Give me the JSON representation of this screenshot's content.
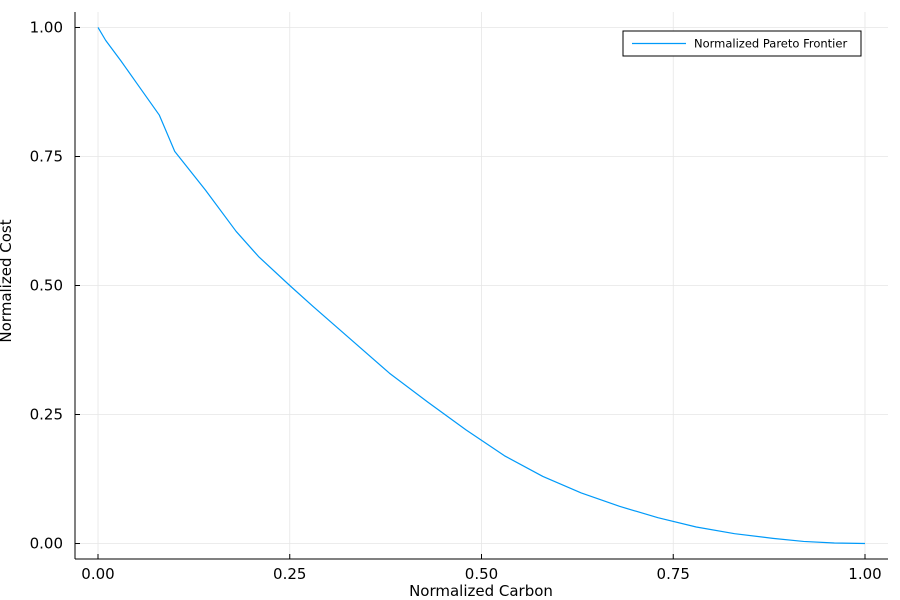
{
  "chart_data": {
    "type": "line",
    "xlabel": "Normalized Carbon",
    "ylabel": "Normalized Cost",
    "xlim": [
      -0.03,
      1.03
    ],
    "ylim": [
      -0.03,
      1.03
    ],
    "xticks": [
      0,
      0.25,
      0.5,
      0.75,
      1
    ],
    "yticks": [
      0,
      0.25,
      0.5,
      0.75,
      1
    ],
    "xtick_labels": [
      "0.00",
      "0.25",
      "0.50",
      "0.75",
      "1.00"
    ],
    "ytick_labels": [
      "0.00",
      "0.25",
      "0.50",
      "0.75",
      "1.00"
    ],
    "grid": true,
    "legend_position": "top-right",
    "series": [
      {
        "name": "Normalized Pareto Frontier",
        "color": "#009af9",
        "x": [
          0.0,
          0.01,
          0.03,
          0.05,
          0.08,
          0.1,
          0.14,
          0.18,
          0.21,
          0.25,
          0.28,
          0.33,
          0.38,
          0.43,
          0.48,
          0.53,
          0.58,
          0.63,
          0.68,
          0.73,
          0.78,
          0.83,
          0.88,
          0.92,
          0.96,
          1.0
        ],
        "y": [
          1.0,
          0.975,
          0.935,
          0.893,
          0.83,
          0.76,
          0.685,
          0.605,
          0.555,
          0.5,
          0.46,
          0.395,
          0.33,
          0.274,
          0.22,
          0.17,
          0.13,
          0.098,
          0.072,
          0.05,
          0.032,
          0.019,
          0.01,
          0.004,
          0.001,
          0.0
        ]
      }
    ]
  }
}
